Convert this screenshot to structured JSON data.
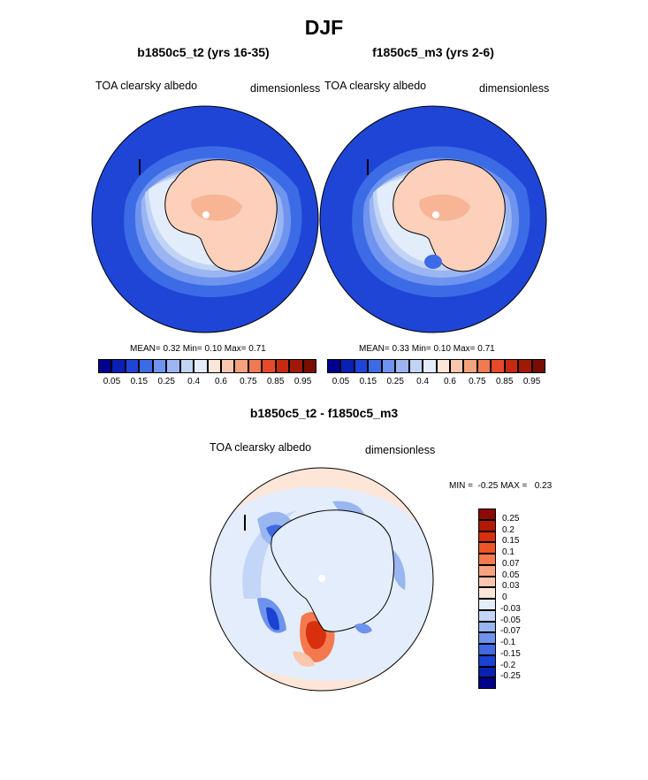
{
  "figure": {
    "title": "DJF",
    "diff_title": "b1850c5_t2 - f1850c5_m3"
  },
  "panels": [
    {
      "case_title": "b1850c5_t2 (yrs 16-35)",
      "variable": "TOA clearsky albedo",
      "units": "dimensionless",
      "stats": {
        "mean_label": "MEAN=",
        "mean": "0.32",
        "min_label": "Min=",
        "min": "0.10",
        "max_label": "Max=",
        "max": "0.71"
      }
    },
    {
      "case_title": "f1850c5_m3 (yrs 2-6)",
      "variable": "TOA clearsky albedo",
      "units": "dimensionless",
      "stats": {
        "mean_label": "MEAN=",
        "mean": "0.33",
        "min_label": "Min=",
        "min": "0.10",
        "max_label": "Max=",
        "max": "0.71"
      }
    }
  ],
  "diff_panel": {
    "variable": "TOA clearsky albedo",
    "units": "dimensionless",
    "minmax_text": "MIN =  -0.25 MAX =   0.23"
  },
  "colorbar_main": {
    "ticks": [
      "0.05",
      "0.15",
      "0.25",
      "0.4",
      "0.6",
      "0.75",
      "0.85",
      "0.95"
    ],
    "colors": [
      "#00008f",
      "#0a1fb4",
      "#1f45d6",
      "#3c6be6",
      "#6f94ef",
      "#9ab5f2",
      "#c2d4f6",
      "#e3ecfb",
      "#fce6da",
      "#f9c7ad",
      "#f4a37f",
      "#ef7a52",
      "#e64a28",
      "#c62a10",
      "#9f1905",
      "#7a0d02"
    ]
  },
  "colorbar_diff": {
    "ticks": [
      "0.25",
      "0.2",
      "0.15",
      "0.1",
      "0.07",
      "0.05",
      "0.03",
      "0",
      "-0.03",
      "-0.05",
      "-0.07",
      "-0.1",
      "-0.15",
      "-0.2",
      "-0.25"
    ],
    "colors": [
      "#8b0a02",
      "#b51805",
      "#d8300f",
      "#ee5525",
      "#f4794f",
      "#f7a27f",
      "#fac6ac",
      "#fde6d7",
      "#e4edfb",
      "#c4d6f7",
      "#99b6f1",
      "#6d93ec",
      "#3f6ae4",
      "#1c42d2",
      "#0b20b4",
      "#00008c"
    ]
  }
}
